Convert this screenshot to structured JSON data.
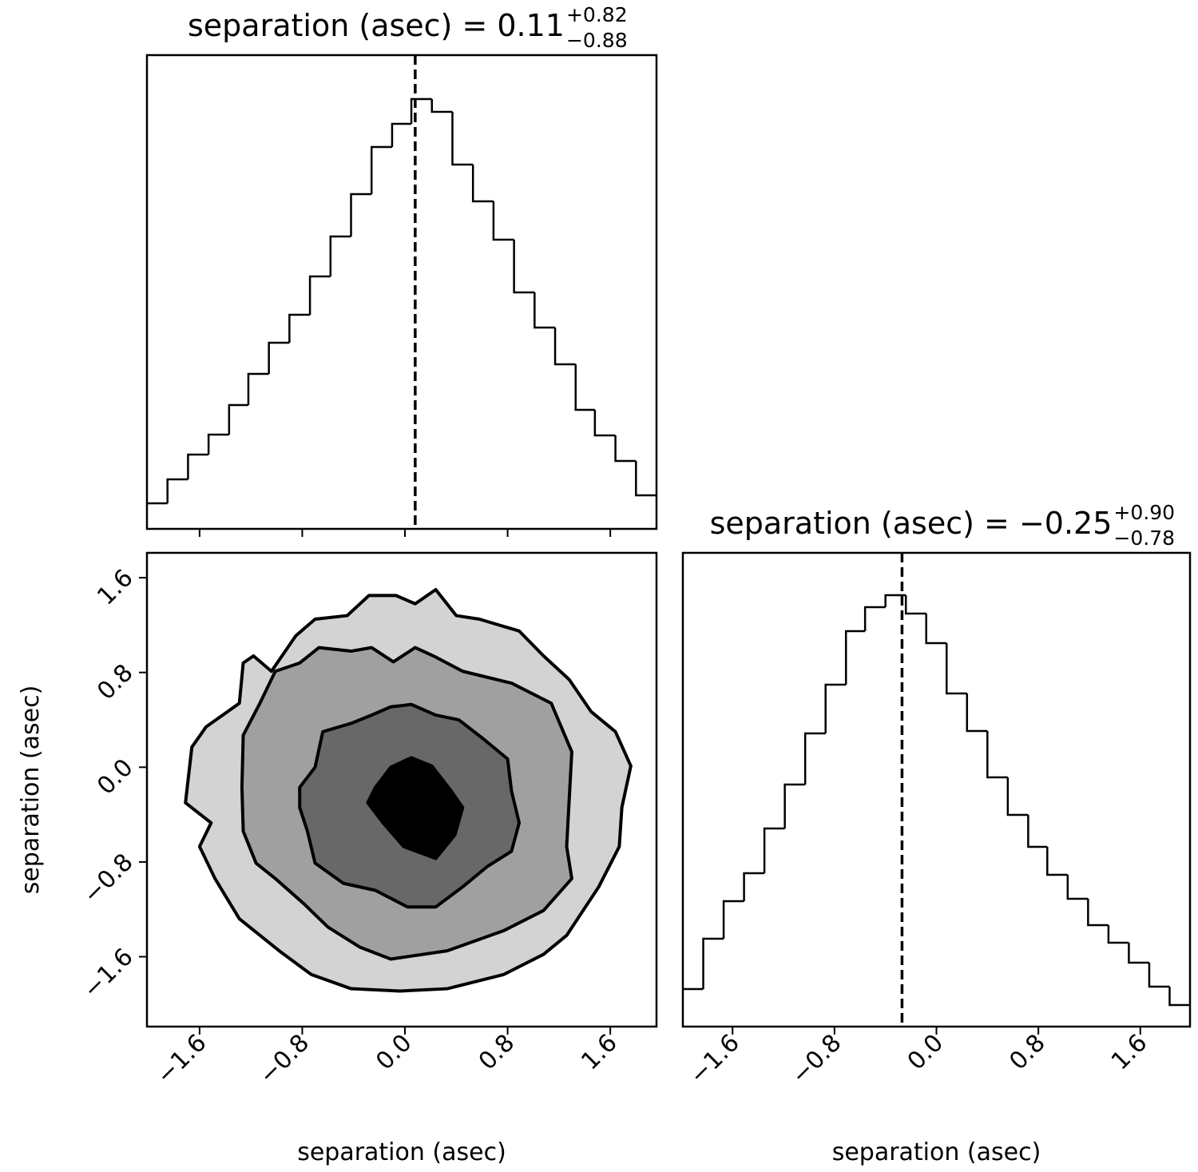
{
  "chart_data": [
    {
      "type": "histogram",
      "title": "separation (asec) = 0.11",
      "title_sup": "+0.82",
      "title_sub": "−0.88",
      "bins": [
        -2.01,
        -1.85,
        -1.69,
        -1.53,
        -1.37,
        -1.22,
        -1.06,
        -0.9,
        -0.74,
        -0.58,
        -0.42,
        -0.26,
        -0.1,
        0.05,
        0.21,
        0.37,
        0.53,
        0.69,
        0.85,
        1.01,
        1.17,
        1.33,
        1.48,
        1.64,
        1.8,
        1.96
      ],
      "counts": [
        32,
        62,
        93,
        118,
        155,
        194,
        233,
        268,
        316,
        366,
        419,
        478,
        507,
        538,
        522,
        456,
        410,
        362,
        296,
        252,
        206,
        149,
        117,
        85,
        42
      ],
      "vline": 0.08,
      "color": "#000000",
      "xlim": [
        -2.01,
        1.96
      ],
      "ylim": [
        0,
        593
      ],
      "xticks": [
        {
          "value": -1.6,
          "label": "−1.6"
        },
        {
          "value": -0.8,
          "label": "−0.8"
        },
        {
          "value": 0,
          "label": "0.0"
        },
        0.8,
        1.6
      ],
      "xtick_labels": false
    },
    {
      "type": "contour",
      "xlabel": "separation (asec)",
      "ylabel": "separation (asec)",
      "xlim": [
        -2.01,
        1.96
      ],
      "ylim": [
        -2.19,
        1.81
      ],
      "xticks": [
        {
          "value": -1.6,
          "label": "−1.6"
        },
        {
          "value": -0.8,
          "label": "−0.8"
        },
        {
          "value": 0,
          "label": "0.0"
        },
        0.8,
        1.6
      ],
      "yticks": [
        {
          "value": -1.6,
          "label": "−1.6"
        },
        {
          "value": -0.8,
          "label": "−0.8"
        },
        {
          "value": 0,
          "label": "0.0"
        },
        0.8,
        1.6
      ],
      "contours": [
        {
          "color": "#d3d3d3",
          "x": [
            -1.71,
            -1.66,
            -1.55,
            -1.29,
            -1.26,
            -1.18,
            -1.04,
            -0.85,
            -0.7,
            -0.45,
            -0.28,
            -0.07,
            0.08,
            0.24,
            0.4,
            0.58,
            0.89,
            1.08,
            1.28,
            1.45,
            1.64,
            1.76,
            1.69,
            1.67,
            1.51,
            1.26,
            1.08,
            0.77,
            0.33,
            -0.04,
            -0.42,
            -0.73,
            -0.98,
            -1.29,
            -1.48,
            -1.6,
            -1.51
          ],
          "y": [
            -0.3,
            0.17,
            0.34,
            0.54,
            0.88,
            0.94,
            0.81,
            1.11,
            1.25,
            1.28,
            1.45,
            1.45,
            1.38,
            1.5,
            1.28,
            1.25,
            1.15,
            0.94,
            0.74,
            0.47,
            0.3,
            0.01,
            -0.34,
            -0.67,
            -1.01,
            -1.42,
            -1.58,
            -1.75,
            -1.87,
            -1.89,
            -1.87,
            -1.75,
            -1.55,
            -1.28,
            -0.94,
            -0.67,
            -0.47
          ]
        },
        {
          "color": "#a0a0a0",
          "x": [
            -1.27,
            -1.26,
            -1.13,
            -1.01,
            -0.82,
            -0.67,
            -0.42,
            -0.26,
            -0.09,
            0.08,
            0.24,
            0.45,
            0.83,
            1.14,
            1.3,
            1.28,
            1.26,
            1.3,
            1.08,
            0.77,
            0.33,
            -0.11,
            -0.35,
            -0.6,
            -0.79,
            -1.01,
            -1.16,
            -1.26
          ],
          "y": [
            -0.17,
            0.27,
            0.54,
            0.81,
            0.88,
            1.01,
            0.98,
            1.01,
            0.89,
            1.01,
            0.93,
            0.81,
            0.71,
            0.54,
            0.13,
            -0.27,
            -0.67,
            -0.94,
            -1.21,
            -1.38,
            -1.55,
            -1.62,
            -1.52,
            -1.35,
            -1.15,
            -0.94,
            -0.81,
            -0.54
          ]
        },
        {
          "color": "#686868",
          "x": [
            -0.82,
            -0.7,
            -0.64,
            -0.42,
            -0.26,
            -0.11,
            0.05,
            0.24,
            0.42,
            0.61,
            0.8,
            0.83,
            0.89,
            0.83,
            0.64,
            0.45,
            0.24,
            0.02,
            -0.23,
            -0.48,
            -0.7,
            -0.76,
            -0.82
          ],
          "y": [
            -0.17,
            0,
            0.3,
            0.37,
            0.44,
            0.51,
            0.53,
            0.44,
            0.4,
            0.24,
            0.07,
            -0.2,
            -0.47,
            -0.71,
            -0.84,
            -1.01,
            -1.18,
            -1.18,
            -1.04,
            -0.98,
            -0.81,
            -0.54,
            -0.34
          ]
        },
        {
          "color": "#000000",
          "x": [
            -0.29,
            -0.23,
            -0.11,
            0.05,
            0.21,
            0.36,
            0.45,
            0.39,
            0.24,
            -0.01,
            -0.17
          ],
          "y": [
            -0.3,
            -0.17,
            0,
            0.08,
            0.01,
            -0.2,
            -0.34,
            -0.57,
            -0.77,
            -0.67,
            -0.47
          ]
        }
      ]
    },
    {
      "type": "histogram",
      "title": "separation (asec) = −0.25",
      "title_sup": "+0.90",
      "title_sub": "−0.78",
      "xlabel": "separation (asec)",
      "bins": [
        -1.99,
        -1.83,
        -1.67,
        -1.51,
        -1.35,
        -1.19,
        -1.03,
        -0.87,
        -0.71,
        -0.56,
        -0.4,
        -0.24,
        -0.08,
        0.08,
        0.24,
        0.4,
        0.56,
        0.72,
        0.87,
        1.03,
        1.19,
        1.35,
        1.51,
        1.67,
        1.83,
        1.99
      ],
      "counts": [
        47,
        110,
        157,
        192,
        248,
        303,
        367,
        428,
        495,
        525,
        540,
        517,
        480,
        417,
        370,
        312,
        265,
        225,
        190,
        160,
        127,
        105,
        80,
        50,
        27
      ],
      "vline": -0.27,
      "color": "#000000",
      "xlim": [
        -1.99,
        1.99
      ],
      "ylim": [
        0,
        593
      ],
      "xticks": [
        {
          "value": -1.6,
          "label": "−1.6"
        },
        {
          "value": -0.8,
          "label": "−0.8"
        },
        {
          "value": 0,
          "label": "0.0"
        },
        0.8,
        1.6
      ],
      "xtick_labels": true
    }
  ]
}
